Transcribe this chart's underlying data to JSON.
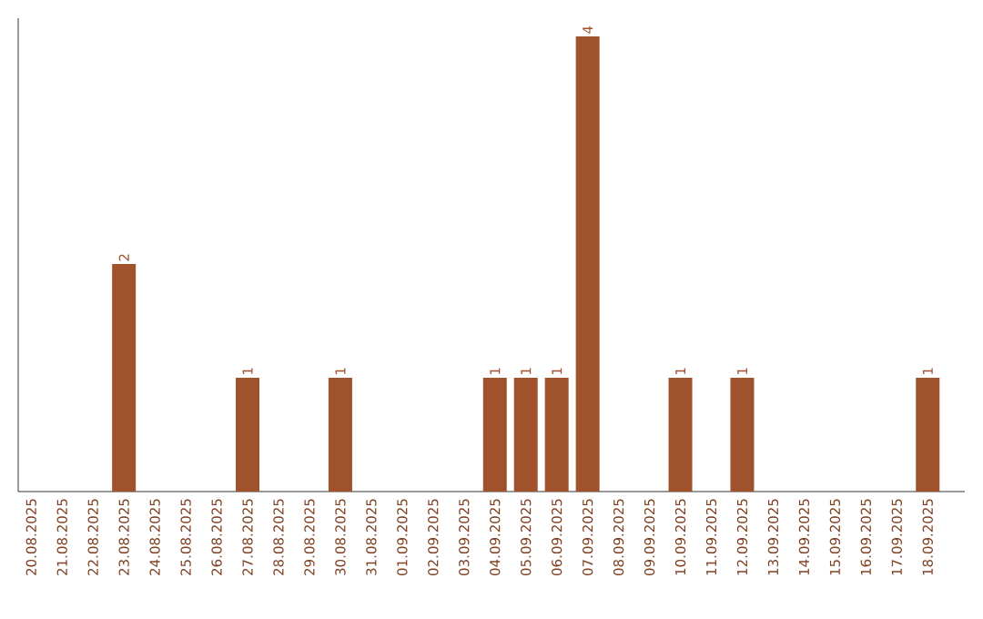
{
  "chart_data": {
    "type": "bar",
    "categories": [
      "20.08.2025",
      "21.08.2025",
      "22.08.2025",
      "23.08.2025",
      "24.08.2025",
      "25.08.2025",
      "26.08.2025",
      "27.08.2025",
      "28.08.2025",
      "29.08.2025",
      "30.08.2025",
      "31.08.2025",
      "01.09.2025",
      "02.09.2025",
      "03.09.2025",
      "04.09.2025",
      "05.09.2025",
      "06.09.2025",
      "07.09.2025",
      "08.09.2025",
      "09.09.2025",
      "10.09.2025",
      "11.09.2025",
      "12.09.2025",
      "13.09.2025",
      "14.09.2025",
      "15.09.2025",
      "16.09.2025",
      "17.09.2025",
      "18.09.2025"
    ],
    "values": [
      0,
      0,
      0,
      2,
      0,
      0,
      0,
      1,
      0,
      0,
      1,
      0,
      0,
      0,
      0,
      1,
      1,
      1,
      4,
      0,
      0,
      1,
      0,
      1,
      0,
      0,
      0,
      0,
      0,
      1
    ],
    "value_labels": [
      null,
      null,
      null,
      "2",
      null,
      null,
      null,
      "1",
      null,
      null,
      "1",
      null,
      null,
      null,
      null,
      "1",
      "1",
      "1",
      "4",
      null,
      null,
      "1",
      null,
      "1",
      null,
      null,
      null,
      null,
      null,
      "1"
    ],
    "color": "#a0522d",
    "tick_labels": "x"
  }
}
